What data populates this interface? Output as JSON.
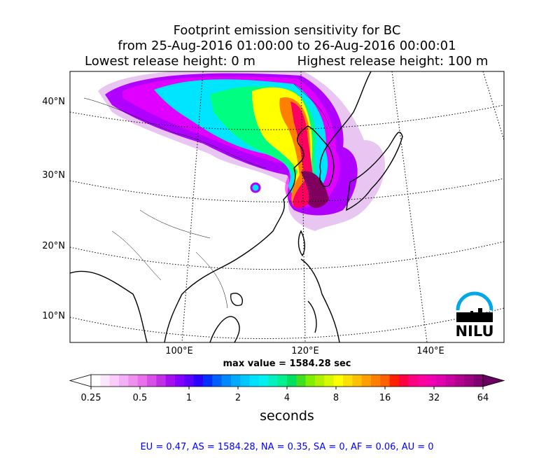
{
  "header": {
    "title_lines": [
      "Footprint emission sensitivity for BC",
      "from 25-Aug-2016 01:00:00 to 26-Aug-2016 00:00:01"
    ],
    "lowest_release": "Lowest release height: 0 m",
    "highest_release": "Highest release height: 100 m"
  },
  "map": {
    "lat_labels": [
      "40°N",
      "30°N",
      "20°N",
      "10°N"
    ],
    "lon_labels": [
      "100°E",
      "120°E",
      "140°E"
    ],
    "max_value": "max value = 1584.28 sec",
    "logo": "NILU"
  },
  "colorbar": {
    "ticks": [
      0.25,
      0.5,
      1,
      2,
      4,
      8,
      16,
      32,
      64
    ],
    "label": "seconds"
  },
  "footer": "EU = 0.47,  AS = 1584.28,  NA = 0.35,  SA = 0,  AF = 0.06,  AU = 0"
}
